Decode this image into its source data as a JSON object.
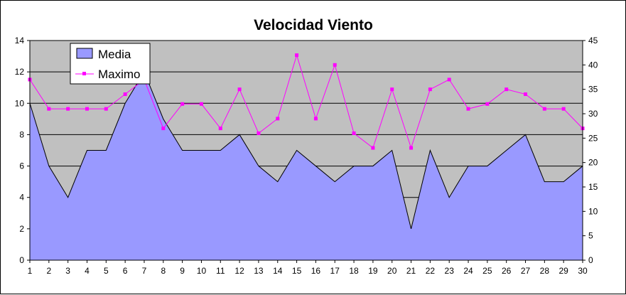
{
  "chart_data": {
    "type": "area",
    "title": "Velocidad Viento",
    "xlabel": "",
    "ylabel": "",
    "categories": [
      "1",
      "2",
      "3",
      "4",
      "5",
      "6",
      "7",
      "8",
      "9",
      "10",
      "11",
      "12",
      "13",
      "14",
      "15",
      "16",
      "17",
      "18",
      "19",
      "20",
      "21",
      "22",
      "23",
      "24",
      "25",
      "26",
      "27",
      "28",
      "29",
      "30"
    ],
    "ylim": [
      0,
      14
    ],
    "y_ticks": [
      "0",
      "2",
      "4",
      "6",
      "8",
      "10",
      "12",
      "14"
    ],
    "y2lim": [
      0,
      45
    ],
    "y2_ticks": [
      "0",
      "5",
      "10",
      "15",
      "20",
      "25",
      "30",
      "35",
      "40",
      "45"
    ],
    "grid": true,
    "legend_position": "top-left",
    "series": [
      {
        "name": "Media",
        "type": "area",
        "axis": "left",
        "color": "#9999ff",
        "values": [
          10,
          6,
          4,
          7,
          7,
          10,
          12,
          9,
          7,
          7,
          7,
          8,
          6,
          5,
          7,
          6,
          5,
          6,
          6,
          7,
          2,
          7,
          4,
          6,
          6,
          7,
          8,
          5,
          5,
          6
        ]
      },
      {
        "name": "Maximo",
        "type": "line",
        "axis": "right",
        "color": "#ff00ff",
        "values": [
          37,
          31,
          31,
          31,
          31,
          34,
          37,
          27,
          32,
          32,
          27,
          35,
          26,
          29,
          42,
          29,
          40,
          26,
          23,
          35,
          23,
          35,
          37,
          31,
          32,
          35,
          34,
          31,
          31,
          27
        ]
      }
    ],
    "plot_background": "#c0c0c0"
  }
}
